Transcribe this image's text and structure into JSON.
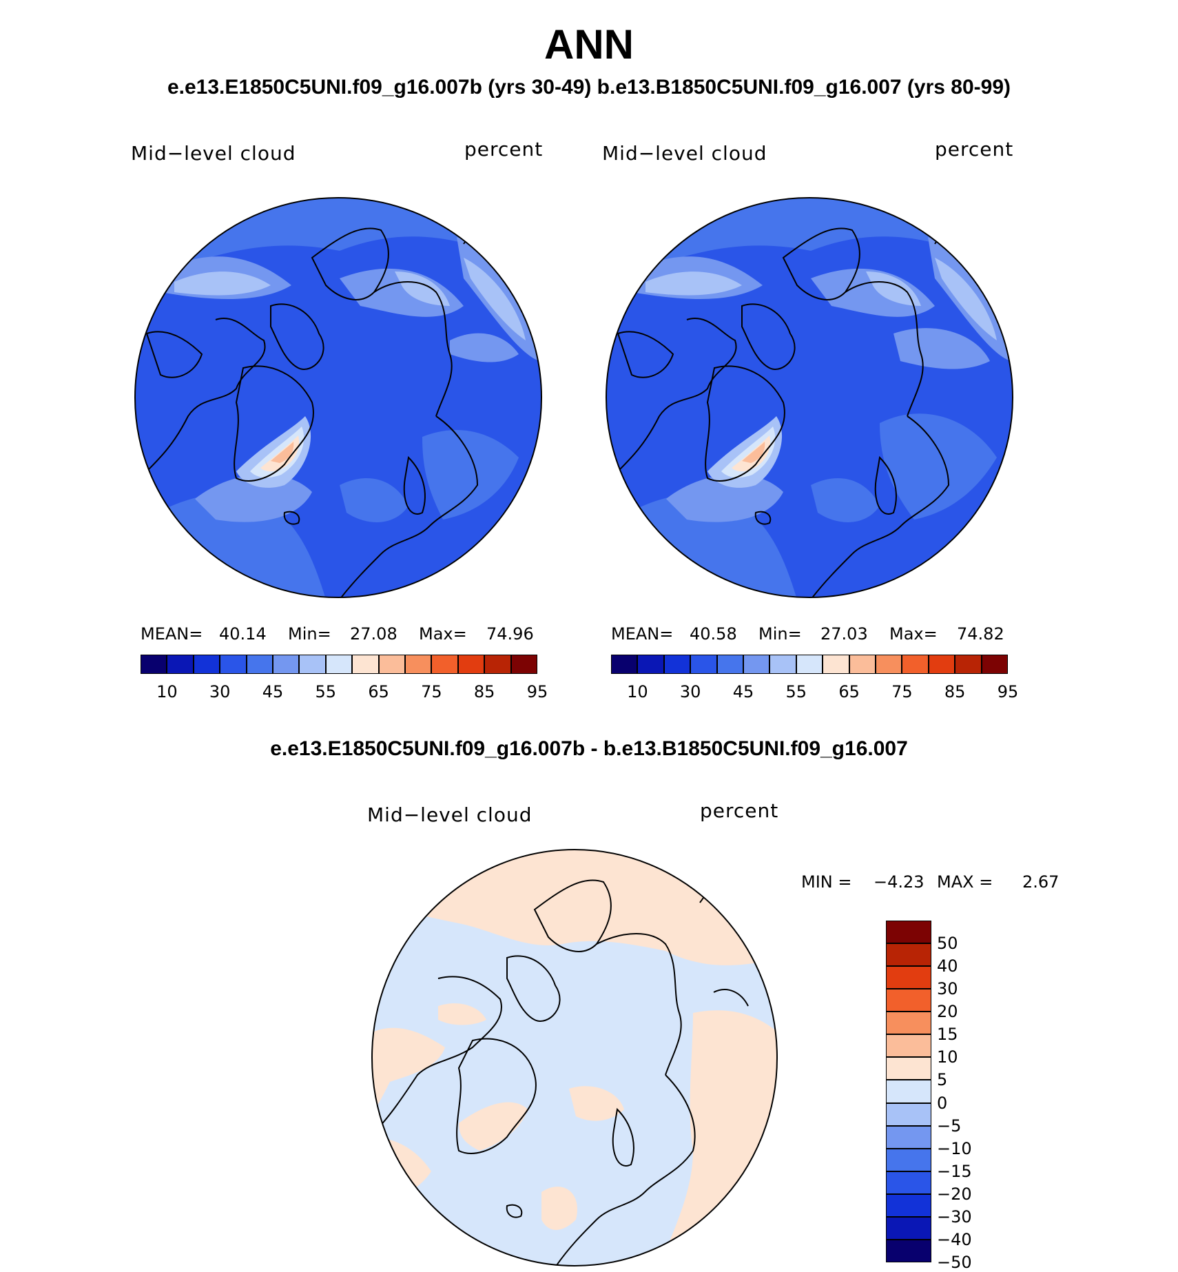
{
  "header": {
    "title": "ANN",
    "subtitle": "e.e13.E1850C5UNI.f09_g16.007b (yrs 30-49)  b.e13.B1850C5UNI.f09_g16.007 (yrs 80-99)",
    "diff_title": "e.e13.E1850C5UNI.f09_g16.007b - b.e13.B1850C5UNI.f09_g16.007"
  },
  "panels": [
    {
      "left_label": "Mid−level cloud",
      "right_label": "percent",
      "mean_label": "MEAN=",
      "mean": "40.14",
      "min_label": "Min=",
      "min": "27.08",
      "max_label": "Max=",
      "max": "74.96"
    },
    {
      "left_label": "Mid−level cloud",
      "right_label": "percent",
      "mean_label": "MEAN=",
      "mean": "40.58",
      "min_label": "Min=",
      "min": "27.03",
      "max_label": "Max=",
      "max": "74.82"
    }
  ],
  "diff_panel": {
    "left_label": "Mid−level cloud",
    "right_label": "percent",
    "min_label": "MIN =",
    "min": "−4.23",
    "max_label": "MAX =",
    "max": "2.67"
  },
  "colorbar": {
    "colors": [
      "#08006e",
      "#0a17b5",
      "#1232d8",
      "#2a55e8",
      "#4675ec",
      "#7497f0",
      "#a8c2f7",
      "#d6e6fb",
      "#fde4d2",
      "#fbbd9a",
      "#f78f5d",
      "#f2602b",
      "#e23d10",
      "#b82405",
      "#7c0303"
    ],
    "tick_labels": [
      "10",
      "30",
      "45",
      "55",
      "65",
      "75",
      "85",
      "95"
    ]
  },
  "diff_colorbar": {
    "colors": [
      "#7c0303",
      "#b82405",
      "#e23d10",
      "#f2602b",
      "#f78f5d",
      "#fbbd9a",
      "#fde4d2",
      "#d6e6fb",
      "#a8c2f7",
      "#7497f0",
      "#4675ec",
      "#2a55e8",
      "#1232d8",
      "#0a17b5",
      "#08006e"
    ],
    "tick_labels": [
      "50",
      "40",
      "30",
      "20",
      "15",
      "10",
      "5",
      "0",
      "−5",
      "−10",
      "−15",
      "−20",
      "−30",
      "−40",
      "−50"
    ]
  },
  "map_colors": {
    "base": "#2a55e8",
    "band": "#4675ec",
    "light": "#7497f0",
    "pale": "#a8c2f7",
    "very_pale": "#d6e6fb",
    "warm": "#fde4d2",
    "warm2": "#fbbd9a",
    "coast": "#000000"
  },
  "diff_map_colors": {
    "neg": "#d6e6fb",
    "pos": "#fde4d2"
  }
}
